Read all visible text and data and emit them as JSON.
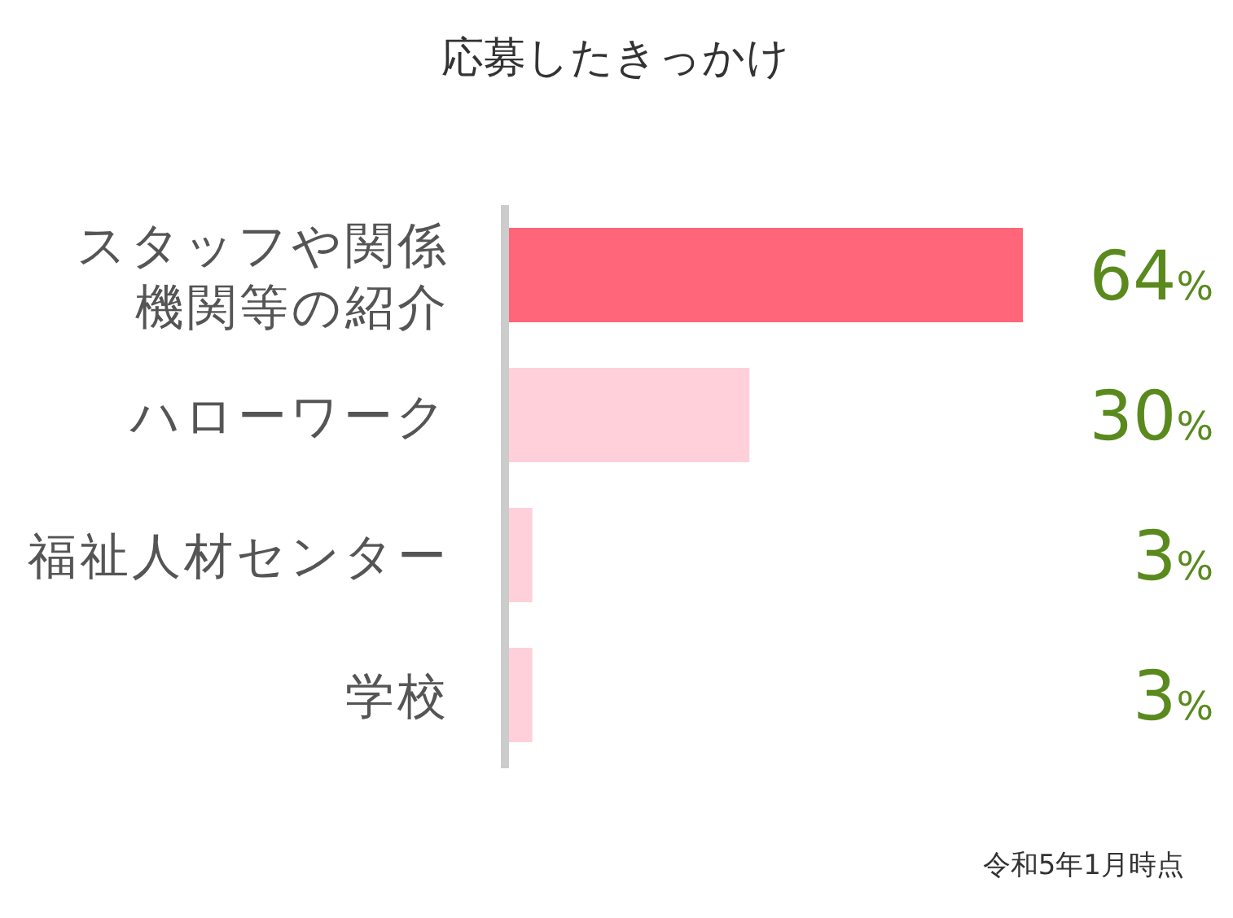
{
  "chart_data": {
    "type": "bar",
    "orientation": "horizontal",
    "title": "応募したきっかけ",
    "categories": [
      "スタッフや関係機関等の紹介",
      "ハローワーク",
      "福祉人材センター",
      "学校"
    ],
    "values": [
      64,
      30,
      3,
      3
    ],
    "colors": [
      "#ff6679",
      "#ffd0da",
      "#ffd0da",
      "#ffd0da"
    ],
    "value_labels": [
      "64%",
      "30%",
      "3%",
      "3%"
    ],
    "annotations": [
      "令和5年1月時点"
    ]
  }
}
